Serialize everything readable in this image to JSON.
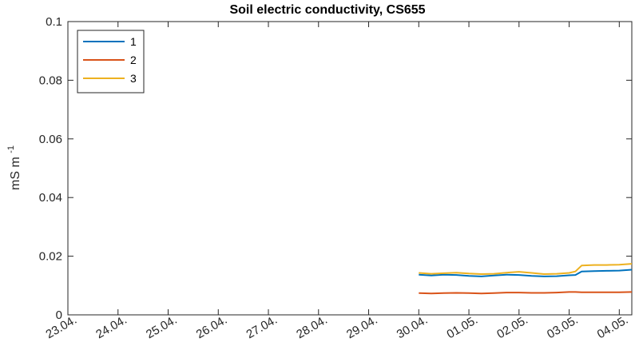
{
  "chart_data": {
    "type": "line",
    "title": "Soil electric conductivity, CS655",
    "xlabel": "",
    "ylabel": "mS m",
    "ylabel_superscript": "-1",
    "ylim": [
      0,
      0.1
    ],
    "yticks": [
      "0",
      "0.02",
      "0.04",
      "0.06",
      "0.08",
      "0.1"
    ],
    "xlim": [
      "2020-04-23",
      "2020-05-04"
    ],
    "xticks": [
      "23.04.",
      "24.04.",
      "25.04.",
      "26.04.",
      "27.04.",
      "28.04.",
      "29.04.",
      "30.04.",
      "01.05.",
      "02.05.",
      "03.05.",
      "04.05."
    ],
    "grid": false,
    "legend_position": "top-left",
    "x": [
      "2020-04-30 00:00",
      "2020-04-30 06:00",
      "2020-04-30 12:00",
      "2020-04-30 18:00",
      "2020-05-01 00:00",
      "2020-05-01 06:00",
      "2020-05-01 12:00",
      "2020-05-01 18:00",
      "2020-05-02 00:00",
      "2020-05-02 06:00",
      "2020-05-02 12:00",
      "2020-05-02 18:00",
      "2020-05-03 00:00",
      "2020-05-03 03:00",
      "2020-05-03 06:00",
      "2020-05-03 12:00",
      "2020-05-03 18:00",
      "2020-05-04 00:00",
      "2020-05-04 06:00"
    ],
    "series": [
      {
        "name": "1",
        "color": "#0072BD",
        "values": [
          0.0137,
          0.0134,
          0.0137,
          0.0136,
          0.0133,
          0.0131,
          0.0134,
          0.0137,
          0.0136,
          0.0133,
          0.0131,
          0.0132,
          0.0135,
          0.0136,
          0.0148,
          0.0149,
          0.015,
          0.0151,
          0.0154
        ]
      },
      {
        "name": "2",
        "color": "#D95319",
        "values": [
          0.0074,
          0.0073,
          0.0074,
          0.0075,
          0.0074,
          0.0073,
          0.0074,
          0.0076,
          0.0076,
          0.0075,
          0.0075,
          0.0076,
          0.0078,
          0.0078,
          0.0077,
          0.0077,
          0.0077,
          0.0077,
          0.0078
        ]
      },
      {
        "name": "3",
        "color": "#EDB120",
        "values": [
          0.0143,
          0.014,
          0.0142,
          0.0144,
          0.0141,
          0.0139,
          0.014,
          0.0144,
          0.0147,
          0.0143,
          0.0139,
          0.014,
          0.0143,
          0.0148,
          0.0168,
          0.017,
          0.017,
          0.0171,
          0.0174
        ]
      }
    ]
  }
}
